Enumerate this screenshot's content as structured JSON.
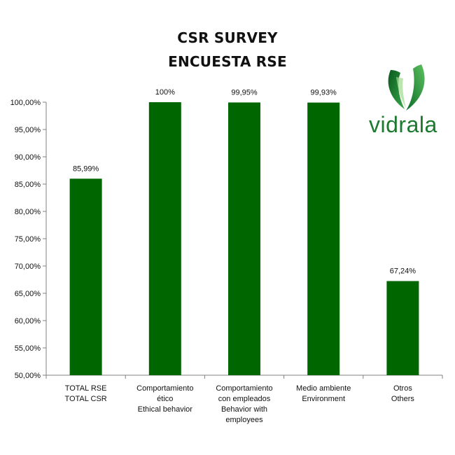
{
  "titles": {
    "line1": "CSR SURVEY",
    "line2": "ENCUESTA RSE"
  },
  "logo": {
    "text": "vidrala",
    "icon": "vidrala-v-logo",
    "color": "#1b7a2e"
  },
  "colors": {
    "bar": "#006600",
    "axis": "#808080"
  },
  "chart_data": {
    "type": "bar",
    "title": "CSR SURVEY ENCUESTA RSE",
    "categories": [
      [
        "TOTAL  RSE",
        "TOTAL  CSR"
      ],
      [
        "Comportamiento",
        "ético",
        "Ethical behavior"
      ],
      [
        "Comportamiento",
        "con empleados",
        "Behavior with",
        "employees"
      ],
      [
        "Medio ambiente",
        "Environment"
      ],
      [
        "Otros",
        "Others"
      ]
    ],
    "values": [
      85.99,
      100,
      99.95,
      99.93,
      67.24
    ],
    "data_labels": [
      "85,99%",
      "100%",
      "99,95%",
      "99,93%",
      "67,24%"
    ],
    "ylim": [
      50,
      100
    ],
    "yticks": [
      "50,00%",
      "55,00%",
      "60,00%",
      "65,00%",
      "70,00%",
      "75,00%",
      "80,00%",
      "85,00%",
      "90,00%",
      "95,00%",
      "100,00%"
    ],
    "ytick_values": [
      50,
      55,
      60,
      65,
      70,
      75,
      80,
      85,
      90,
      95,
      100
    ],
    "grid": false,
    "legend": "none"
  }
}
